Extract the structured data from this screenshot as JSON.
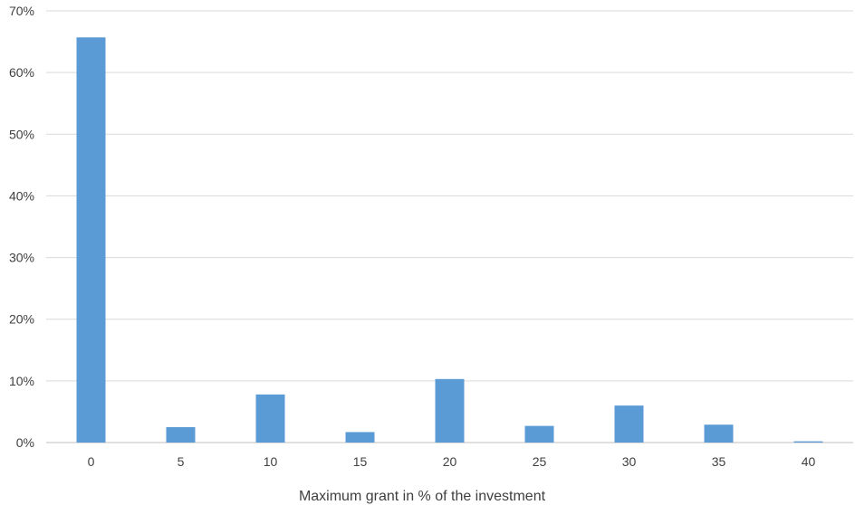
{
  "chart_data": {
    "type": "bar",
    "title": "",
    "xlabel": "Maximum grant in % of the investment",
    "ylabel": "",
    "categories": [
      "0",
      "5",
      "10",
      "15",
      "20",
      "25",
      "30",
      "35",
      "40"
    ],
    "values": [
      65.7,
      2.5,
      7.8,
      1.7,
      10.3,
      2.7,
      6.0,
      2.9,
      0.2
    ],
    "ylim": [
      0,
      70
    ],
    "yticks": [
      0,
      10,
      20,
      30,
      40,
      50,
      60,
      70
    ],
    "ytick_format": "{v}%",
    "grid": true,
    "legend": "none",
    "colors": {
      "bar": "#5b9bd5",
      "grid": "#d9d9d9",
      "axis": "#bfbfbf",
      "text": "#404040"
    }
  }
}
